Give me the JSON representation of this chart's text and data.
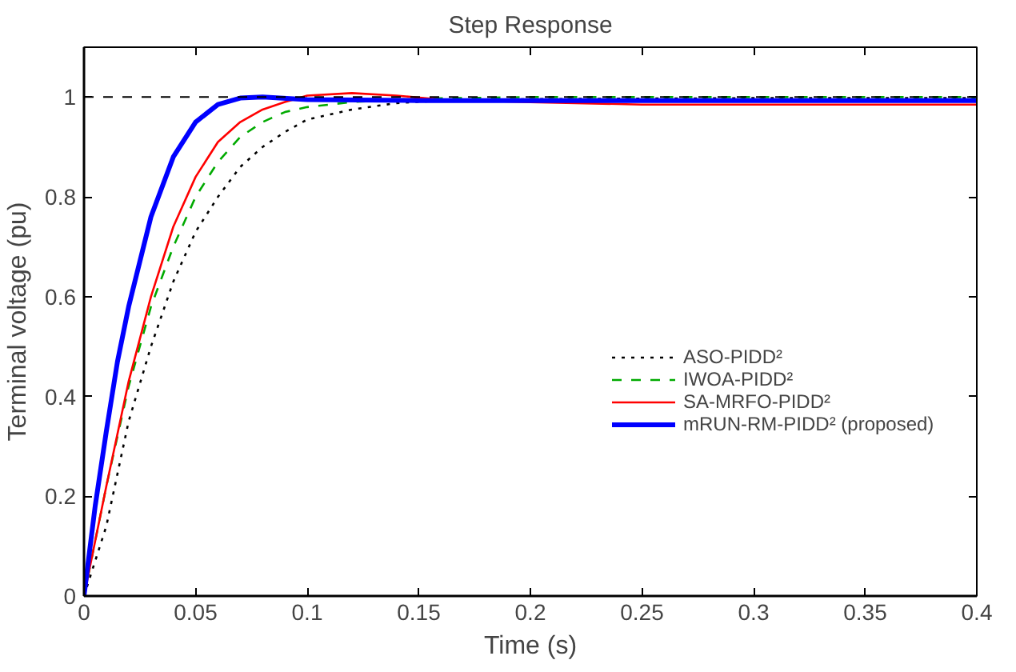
{
  "chart_data": {
    "type": "line",
    "title": "Step Response",
    "xlabel": "Time (s)",
    "ylabel": "Terminal voltage (pu)",
    "xlim": [
      0,
      0.4
    ],
    "ylim": [
      0,
      1.1
    ],
    "xticks": [
      0,
      0.05,
      0.1,
      0.15,
      0.2,
      0.25,
      0.3,
      0.35,
      0.4
    ],
    "yticks": [
      0,
      0.2,
      0.4,
      0.6,
      0.8,
      1
    ],
    "grid": false,
    "legend": "right",
    "ref_lines": [
      {
        "axis": "y",
        "value": 1,
        "label": null,
        "color": "#000000",
        "line_style": "dashed"
      }
    ],
    "series": [
      {
        "name": "ASO-PIDD²",
        "color": "#000000",
        "line_style": "dotted",
        "x": [
          0,
          0.01,
          0.02,
          0.03,
          0.04,
          0.05,
          0.06,
          0.07,
          0.08,
          0.09,
          0.1,
          0.12,
          0.14,
          0.16,
          0.2,
          0.3,
          0.4
        ],
        "values": [
          0,
          0.14,
          0.35,
          0.5,
          0.63,
          0.73,
          0.8,
          0.86,
          0.9,
          0.93,
          0.955,
          0.975,
          0.988,
          0.993,
          0.996,
          0.998,
          0.998
        ]
      },
      {
        "name": "IWOA-PIDD²",
        "color": "#00aa00",
        "line_style": "dashed",
        "x": [
          0,
          0.01,
          0.02,
          0.03,
          0.04,
          0.05,
          0.06,
          0.07,
          0.08,
          0.09,
          0.1,
          0.12,
          0.15,
          0.2,
          0.3,
          0.4
        ],
        "values": [
          0,
          0.22,
          0.42,
          0.58,
          0.7,
          0.8,
          0.87,
          0.92,
          0.95,
          0.97,
          0.98,
          0.99,
          0.997,
          1.0,
          1.0,
          1.0
        ]
      },
      {
        "name": "SA-MRFO-PIDD²",
        "color": "#ff0000",
        "line_style": "solid",
        "x": [
          0,
          0.01,
          0.02,
          0.03,
          0.04,
          0.05,
          0.06,
          0.07,
          0.08,
          0.09,
          0.1,
          0.12,
          0.14,
          0.16,
          0.2,
          0.25,
          0.3,
          0.4
        ],
        "values": [
          0,
          0.22,
          0.43,
          0.6,
          0.74,
          0.84,
          0.91,
          0.95,
          0.975,
          0.99,
          1.003,
          1.008,
          1.003,
          0.995,
          0.99,
          0.985,
          0.985,
          0.985
        ]
      },
      {
        "name": "mRUN-RM-PIDD² (proposed)",
        "color": "#0000ff",
        "line_style": "solid",
        "x": [
          0,
          0.005,
          0.01,
          0.015,
          0.02,
          0.03,
          0.04,
          0.05,
          0.06,
          0.07,
          0.08,
          0.1,
          0.15,
          0.2,
          0.3,
          0.4
        ],
        "values": [
          0,
          0.18,
          0.33,
          0.47,
          0.58,
          0.76,
          0.88,
          0.95,
          0.985,
          0.998,
          1.0,
          0.995,
          0.993,
          0.993,
          0.993,
          0.993
        ]
      }
    ]
  }
}
